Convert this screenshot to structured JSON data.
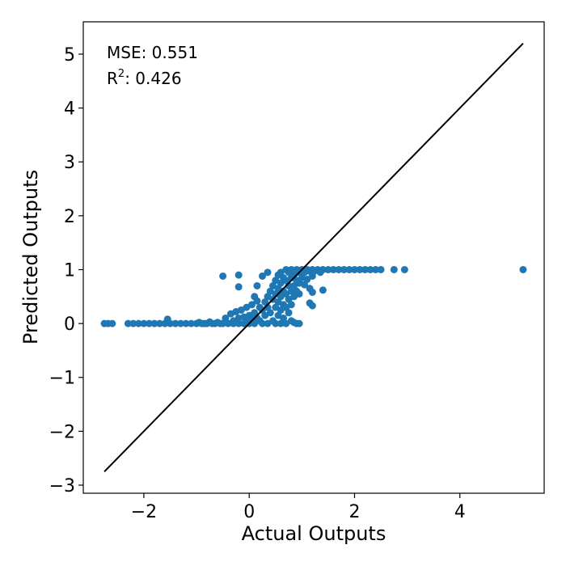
{
  "chart_data": {
    "type": "scatter",
    "xlabel": "Actual Outputs",
    "ylabel": "Predicted Outputs",
    "xlim": [
      -3.15,
      5.6
    ],
    "ylim": [
      -3.15,
      5.6
    ],
    "xticks": [
      -2,
      0,
      2,
      4
    ],
    "yticks": [
      -3,
      -2,
      -1,
      0,
      1,
      2,
      3,
      4,
      5
    ],
    "xtick_labels": [
      "−2",
      "0",
      "2",
      "4"
    ],
    "ytick_labels": [
      "−3",
      "−2",
      "−1",
      "0",
      "1",
      "2",
      "3",
      "4",
      "5"
    ],
    "grid": false,
    "marker_color": "#1f77b4",
    "identity_line": {
      "from": [
        -2.75,
        -2.75
      ],
      "to": [
        5.2,
        5.2
      ],
      "color": "#000000"
    },
    "annotations": {
      "mse_label": "MSE: 0.551",
      "r2_prefix": "R",
      "r2_superscript": "2",
      "r2_suffix": ": 0.426"
    },
    "series": [
      {
        "points": [
          [
            -2.75,
            0.0
          ],
          [
            -2.68,
            0.0
          ],
          [
            -2.6,
            0.0
          ],
          [
            -2.3,
            0.0
          ],
          [
            -2.2,
            0.0
          ],
          [
            -2.1,
            0.0
          ],
          [
            -2.0,
            0.0
          ],
          [
            -1.9,
            0.0
          ],
          [
            -1.8,
            0.0
          ],
          [
            -1.7,
            0.0
          ],
          [
            -1.6,
            0.0
          ],
          [
            -1.55,
            0.08
          ],
          [
            -1.5,
            0.0
          ],
          [
            -1.4,
            0.0
          ],
          [
            -1.3,
            0.0
          ],
          [
            -1.2,
            0.0
          ],
          [
            -1.1,
            0.0
          ],
          [
            -1.0,
            0.0
          ],
          [
            -0.95,
            0.02
          ],
          [
            -0.9,
            0.0
          ],
          [
            -0.85,
            0.0
          ],
          [
            -0.8,
            0.0
          ],
          [
            -0.75,
            0.03
          ],
          [
            -0.7,
            0.0
          ],
          [
            -0.65,
            0.0
          ],
          [
            -0.6,
            0.02
          ],
          [
            -0.55,
            0.0
          ],
          [
            -0.5,
            0.0
          ],
          [
            -0.45,
            0.1
          ],
          [
            -0.45,
            0.02
          ],
          [
            -0.4,
            0.0
          ],
          [
            -0.35,
            0.18
          ],
          [
            -0.3,
            0.05
          ],
          [
            -0.3,
            0.0
          ],
          [
            -0.25,
            0.22
          ],
          [
            -0.2,
            0.1
          ],
          [
            -0.2,
            0.0
          ],
          [
            -0.15,
            0.25
          ],
          [
            -0.1,
            0.12
          ],
          [
            -0.1,
            0.0
          ],
          [
            -0.05,
            0.3
          ],
          [
            -0.05,
            0.05
          ],
          [
            0.0,
            0.15
          ],
          [
            0.0,
            0.0
          ],
          [
            0.05,
            0.35
          ],
          [
            0.05,
            0.08
          ],
          [
            0.1,
            0.5
          ],
          [
            0.1,
            0.2
          ],
          [
            0.1,
            0.0
          ],
          [
            0.15,
            0.42
          ],
          [
            0.15,
            0.1
          ],
          [
            0.2,
            0.3
          ],
          [
            0.2,
            0.05
          ],
          [
            0.25,
            0.25
          ],
          [
            0.25,
            0.0
          ],
          [
            0.3,
            0.4
          ],
          [
            0.3,
            0.15
          ],
          [
            0.35,
            0.5
          ],
          [
            0.35,
            0.3
          ],
          [
            0.35,
            0.0
          ],
          [
            0.4,
            0.6
          ],
          [
            0.4,
            0.2
          ],
          [
            0.45,
            0.7
          ],
          [
            0.45,
            0.45
          ],
          [
            0.45,
            0.05
          ],
          [
            0.5,
            0.8
          ],
          [
            0.5,
            0.55
          ],
          [
            0.5,
            0.3
          ],
          [
            0.5,
            0.0
          ],
          [
            0.55,
            0.9
          ],
          [
            0.55,
            0.65
          ],
          [
            0.55,
            0.4
          ],
          [
            0.55,
            0.15
          ],
          [
            0.6,
            0.95
          ],
          [
            0.6,
            0.75
          ],
          [
            0.6,
            0.5
          ],
          [
            0.6,
            0.25
          ],
          [
            0.6,
            0.0
          ],
          [
            0.65,
            0.85
          ],
          [
            0.65,
            0.6
          ],
          [
            0.65,
            0.35
          ],
          [
            0.65,
            0.1
          ],
          [
            0.7,
            1.0
          ],
          [
            0.7,
            0.8
          ],
          [
            0.7,
            0.55
          ],
          [
            0.7,
            0.3
          ],
          [
            0.7,
            0.0
          ],
          [
            0.75,
            0.95
          ],
          [
            0.75,
            0.7
          ],
          [
            0.75,
            0.45
          ],
          [
            0.75,
            0.2
          ],
          [
            0.8,
            1.0
          ],
          [
            0.8,
            0.85
          ],
          [
            0.8,
            0.6
          ],
          [
            0.8,
            0.35
          ],
          [
            0.8,
            0.05
          ],
          [
            0.85,
            0.9
          ],
          [
            0.85,
            0.7
          ],
          [
            0.85,
            0.5
          ],
          [
            0.85,
            0.02
          ],
          [
            0.9,
            1.0
          ],
          [
            0.9,
            0.8
          ],
          [
            0.9,
            0.6
          ],
          [
            0.9,
            0.0
          ],
          [
            0.95,
            0.95
          ],
          [
            0.95,
            0.75
          ],
          [
            0.95,
            0.55
          ],
          [
            0.95,
            0.0
          ],
          [
            1.0,
            1.0
          ],
          [
            1.0,
            0.85
          ],
          [
            1.05,
            0.95
          ],
          [
            1.05,
            0.72
          ],
          [
            1.1,
            1.0
          ],
          [
            1.1,
            0.82
          ],
          [
            1.15,
            0.97
          ],
          [
            1.15,
            0.65
          ],
          [
            1.15,
            0.38
          ],
          [
            1.2,
            1.0
          ],
          [
            1.2,
            0.88
          ],
          [
            1.2,
            0.58
          ],
          [
            1.2,
            0.33
          ],
          [
            1.25,
            0.98
          ],
          [
            1.3,
            1.0
          ],
          [
            1.35,
            0.95
          ],
          [
            1.4,
            1.0
          ],
          [
            1.4,
            0.62
          ],
          [
            1.5,
            1.0
          ],
          [
            1.6,
            1.0
          ],
          [
            1.7,
            1.0
          ],
          [
            1.8,
            1.0
          ],
          [
            1.9,
            1.0
          ],
          [
            2.0,
            1.0
          ],
          [
            2.1,
            1.0
          ],
          [
            2.2,
            1.0
          ],
          [
            2.3,
            1.0
          ],
          [
            2.4,
            1.0
          ],
          [
            2.5,
            1.0
          ],
          [
            2.75,
            1.0
          ],
          [
            2.95,
            1.0
          ],
          [
            5.2,
            1.0
          ],
          [
            -0.5,
            0.88
          ],
          [
            -0.2,
            0.9
          ],
          [
            -0.2,
            0.68
          ],
          [
            0.15,
            0.7
          ],
          [
            0.25,
            0.88
          ],
          [
            0.35,
            0.95
          ]
        ]
      }
    ]
  }
}
